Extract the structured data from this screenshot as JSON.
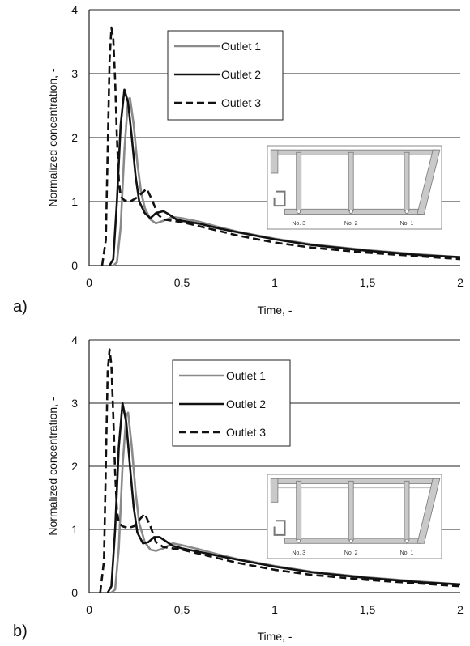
{
  "chart_data": [
    {
      "panel": "a)",
      "type": "line",
      "xlabel": "Time, -",
      "ylabel": "Normalized concentration, -",
      "xlim": [
        0,
        2
      ],
      "ylim": [
        0,
        4
      ],
      "xticks": [
        0,
        0.5,
        1,
        1.5,
        2
      ],
      "xtick_labels": [
        "0",
        "0,5",
        "1",
        "1,5",
        "2"
      ],
      "yticks": [
        0,
        1,
        2,
        3,
        4
      ],
      "ytick_labels": [
        "0",
        "1",
        "2",
        "3",
        "4"
      ],
      "grid": "horizontal",
      "legend_placement": "top-center",
      "inset_labels": [
        "No. 3",
        "No. 2",
        "No. 1"
      ],
      "series": [
        {
          "name": "Outlet 1",
          "color": "#8a8a8a",
          "dash": "solid",
          "x": [
            0.13,
            0.15,
            0.17,
            0.19,
            0.21,
            0.22,
            0.24,
            0.26,
            0.28,
            0.3,
            0.33,
            0.36,
            0.4,
            0.45,
            0.5,
            0.6,
            0.7,
            0.8,
            1.0,
            1.2,
            1.5,
            1.8,
            2.0
          ],
          "y": [
            0,
            0.05,
            0.6,
            1.8,
            2.6,
            2.62,
            2.2,
            1.6,
            1.15,
            0.9,
            0.72,
            0.66,
            0.7,
            0.76,
            0.74,
            0.68,
            0.6,
            0.53,
            0.42,
            0.33,
            0.24,
            0.17,
            0.13
          ]
        },
        {
          "name": "Outlet 2",
          "color": "#111111",
          "dash": "solid",
          "x": [
            0.11,
            0.13,
            0.15,
            0.17,
            0.19,
            0.21,
            0.23,
            0.25,
            0.27,
            0.3,
            0.33,
            0.36,
            0.4,
            0.43,
            0.47,
            0.5,
            0.6,
            0.7,
            0.8,
            1.0,
            1.2,
            1.5,
            1.8,
            2.0
          ],
          "y": [
            0,
            0.1,
            1.0,
            2.2,
            2.75,
            2.55,
            2.0,
            1.4,
            1.0,
            0.82,
            0.74,
            0.82,
            0.85,
            0.8,
            0.72,
            0.7,
            0.65,
            0.58,
            0.52,
            0.41,
            0.32,
            0.23,
            0.16,
            0.13
          ]
        },
        {
          "name": "Outlet 3",
          "color": "#111111",
          "dash": "dashed",
          "x": [
            0.07,
            0.09,
            0.1,
            0.11,
            0.12,
            0.13,
            0.14,
            0.15,
            0.16,
            0.17,
            0.19,
            0.22,
            0.25,
            0.28,
            0.31,
            0.34,
            0.37,
            0.4,
            0.45,
            0.5,
            0.6,
            0.7,
            0.8,
            1.0,
            1.2,
            1.5,
            1.8,
            2.0
          ],
          "y": [
            0,
            0.4,
            1.8,
            3.2,
            3.72,
            3.55,
            2.9,
            2.0,
            1.35,
            1.08,
            1.02,
            1.0,
            1.05,
            1.12,
            1.2,
            1.02,
            0.8,
            0.72,
            0.7,
            0.68,
            0.61,
            0.54,
            0.47,
            0.36,
            0.28,
            0.2,
            0.14,
            0.1
          ]
        }
      ]
    },
    {
      "panel": "b)",
      "type": "line",
      "xlabel": "Time, -",
      "ylabel": "Normalized concentration, -",
      "xlim": [
        0,
        2
      ],
      "ylim": [
        0,
        4
      ],
      "xticks": [
        0,
        0.5,
        1,
        1.5,
        2
      ],
      "xtick_labels": [
        "0",
        "0,5",
        "1",
        "1,5",
        "2"
      ],
      "yticks": [
        0,
        1,
        2,
        3,
        4
      ],
      "ytick_labels": [
        "0",
        "1",
        "2",
        "3",
        "4"
      ],
      "grid": "horizontal",
      "legend_placement": "top-center",
      "inset_labels": [
        "No. 3",
        "No. 2",
        "No. 1"
      ],
      "series": [
        {
          "name": "Outlet 1",
          "color": "#8a8a8a",
          "dash": "solid",
          "x": [
            0.12,
            0.14,
            0.16,
            0.18,
            0.2,
            0.21,
            0.23,
            0.25,
            0.27,
            0.3,
            0.33,
            0.36,
            0.4,
            0.45,
            0.5,
            0.6,
            0.7,
            0.8,
            1.0,
            1.2,
            1.5,
            1.8,
            2.0
          ],
          "y": [
            0,
            0.05,
            0.7,
            2.0,
            2.8,
            2.85,
            2.3,
            1.6,
            1.1,
            0.8,
            0.68,
            0.66,
            0.7,
            0.78,
            0.75,
            0.68,
            0.6,
            0.53,
            0.42,
            0.33,
            0.24,
            0.17,
            0.13
          ]
        },
        {
          "name": "Outlet 2",
          "color": "#111111",
          "dash": "solid",
          "x": [
            0.1,
            0.12,
            0.14,
            0.16,
            0.18,
            0.2,
            0.22,
            0.24,
            0.26,
            0.29,
            0.32,
            0.35,
            0.38,
            0.41,
            0.45,
            0.5,
            0.6,
            0.7,
            0.8,
            1.0,
            1.2,
            1.5,
            1.8,
            2.0
          ],
          "y": [
            0,
            0.1,
            1.0,
            2.3,
            3.0,
            2.7,
            2.0,
            1.35,
            0.95,
            0.78,
            0.8,
            0.88,
            0.88,
            0.82,
            0.74,
            0.7,
            0.64,
            0.58,
            0.52,
            0.41,
            0.32,
            0.23,
            0.16,
            0.13
          ]
        },
        {
          "name": "Outlet 3",
          "color": "#111111",
          "dash": "dashed",
          "x": [
            0.06,
            0.08,
            0.09,
            0.1,
            0.11,
            0.12,
            0.13,
            0.14,
            0.15,
            0.16,
            0.18,
            0.21,
            0.24,
            0.27,
            0.3,
            0.33,
            0.36,
            0.4,
            0.45,
            0.5,
            0.6,
            0.7,
            0.8,
            1.0,
            1.2,
            1.5,
            1.8,
            2.0
          ],
          "y": [
            0,
            0.5,
            2.0,
            3.5,
            3.85,
            3.6,
            2.8,
            1.9,
            1.3,
            1.1,
            1.05,
            1.02,
            1.05,
            1.15,
            1.25,
            1.05,
            0.8,
            0.72,
            0.7,
            0.68,
            0.61,
            0.54,
            0.47,
            0.36,
            0.28,
            0.2,
            0.14,
            0.1
          ]
        }
      ]
    }
  ]
}
